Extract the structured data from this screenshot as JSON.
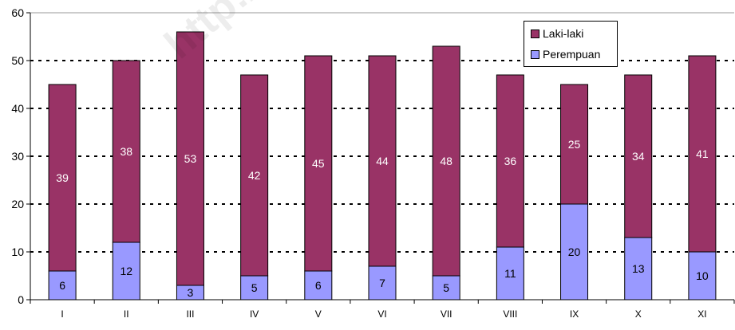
{
  "chart_data": {
    "type": "bar",
    "stacked": true,
    "categories": [
      "I",
      "II",
      "III",
      "IV",
      "V",
      "VI",
      "VII",
      "VIII",
      "IX",
      "X",
      "XI"
    ],
    "series": [
      {
        "name": "Perempuan",
        "values": [
          6,
          12,
          3,
          5,
          6,
          7,
          5,
          11,
          20,
          13,
          10
        ],
        "color": "#9999ff"
      },
      {
        "name": "Laki-laki",
        "values": [
          39,
          38,
          53,
          42,
          45,
          44,
          48,
          36,
          25,
          34,
          41
        ],
        "color": "#993366"
      }
    ],
    "yticks": [
      "0",
      "10",
      "20",
      "30",
      "40",
      "50",
      "60"
    ],
    "ylim": [
      0,
      60
    ],
    "grid": true,
    "legend_position": "top-right",
    "watermark": "http://www"
  }
}
